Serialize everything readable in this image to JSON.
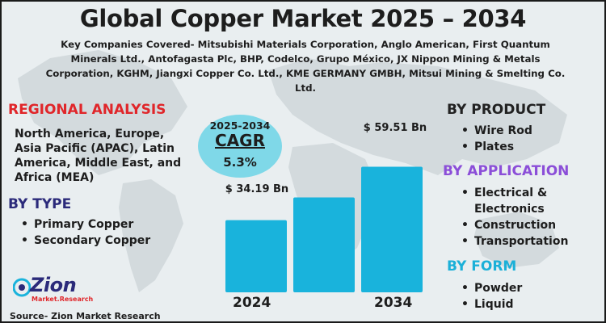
{
  "title": "Global Copper Market 2025 – 2034",
  "companies": "Key Companies Covered- Mitsubishi Materials Corporation, Anglo American, First Quantum Minerals Ltd., Antofagasta Plc, BHP, Codelco, Grupo México, JX Nippon Mining & Metals Corporation, KGHM, Jiangxi Copper Co. Ltd., KME GERMANY GMBH, Mitsui Mining & Smelting Co. Ltd.",
  "regional": {
    "heading": "REGIONAL ANALYSIS",
    "text": "North America, Europe, Asia Pacific (APAC), Latin America, Middle East, and Africa (MEA)"
  },
  "by_type": {
    "heading": "BY TYPE",
    "items": [
      "Primary Copper",
      "Secondary Copper"
    ]
  },
  "by_product": {
    "heading": "BY PRODUCT",
    "items": [
      "Wire Rod",
      "Plates"
    ]
  },
  "by_application": {
    "heading": "BY APPLICATION",
    "items": [
      "Electrical & Electronics",
      "Construction",
      "Transportation"
    ]
  },
  "by_form": {
    "heading": "BY FORM",
    "items": [
      "Powder",
      "Liquid"
    ]
  },
  "cagr": {
    "period": "2025-2034",
    "label": "CAGR",
    "value": "5.3%"
  },
  "source": "Source- Zion Market Research",
  "logo": {
    "name": "Zion",
    "sub": "Market.Research"
  },
  "colors": {
    "bar": "#19b3dc",
    "accent_red": "#e0262a",
    "navy": "#2b2a7a",
    "purple": "#8b4ed8",
    "cyan": "#1bb0d8"
  },
  "chart_data": {
    "type": "bar",
    "categories": [
      "2024",
      "",
      "2034"
    ],
    "values": [
      34.19,
      45.0,
      59.51
    ],
    "data_labels": [
      "$ 34.19 Bn",
      "",
      "$ 59.51 Bn"
    ],
    "unit": "Bn",
    "ylim": [
      0,
      80
    ],
    "grid": false
  }
}
